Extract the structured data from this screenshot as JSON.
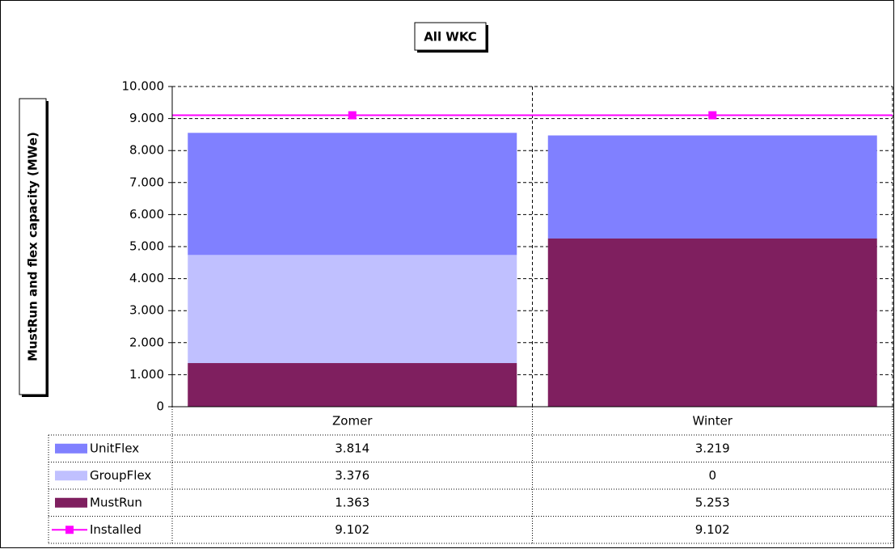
{
  "chart_data": {
    "type": "bar",
    "stacked": true,
    "title": "All WKC",
    "y_label": "MustRun and flex capacity (MWe)",
    "categories": [
      "Zomer",
      "Winter"
    ],
    "series": [
      {
        "name": "UnitFlex",
        "color": "#8080ff",
        "values": [
          3814,
          3219
        ],
        "value_labels": [
          "3.814",
          "3.219"
        ]
      },
      {
        "name": "GroupFlex",
        "color": "#c0c0ff",
        "values": [
          3376,
          0
        ],
        "value_labels": [
          "3.376",
          "0"
        ]
      },
      {
        "name": "MustRun",
        "color": "#7f1f5f",
        "values": [
          1363,
          5253
        ],
        "value_labels": [
          "1.363",
          "5.253"
        ]
      },
      {
        "name": "Installed",
        "type": "line",
        "color": "#ff00ff",
        "values": [
          9102,
          9102
        ],
        "value_labels": [
          "9.102",
          "9.102"
        ]
      }
    ],
    "ylim": [
      0,
      10000
    ],
    "yticks": [
      0,
      {
        "value": 1000,
        "label": "1.000"
      },
      {
        "value": 2000,
        "label": "2.000"
      },
      {
        "value": 3000,
        "label": "3.000"
      },
      {
        "value": 4000,
        "label": "4.000"
      },
      {
        "value": 5000,
        "label": "5.000"
      },
      {
        "value": 6000,
        "label": "6.000"
      },
      {
        "value": 7000,
        "label": "7.000"
      },
      {
        "value": 8000,
        "label": "8.000"
      },
      {
        "value": 9000,
        "label": "9.000"
      },
      {
        "value": 10000,
        "label": "10.000"
      }
    ],
    "grid": true,
    "data_table": true
  }
}
